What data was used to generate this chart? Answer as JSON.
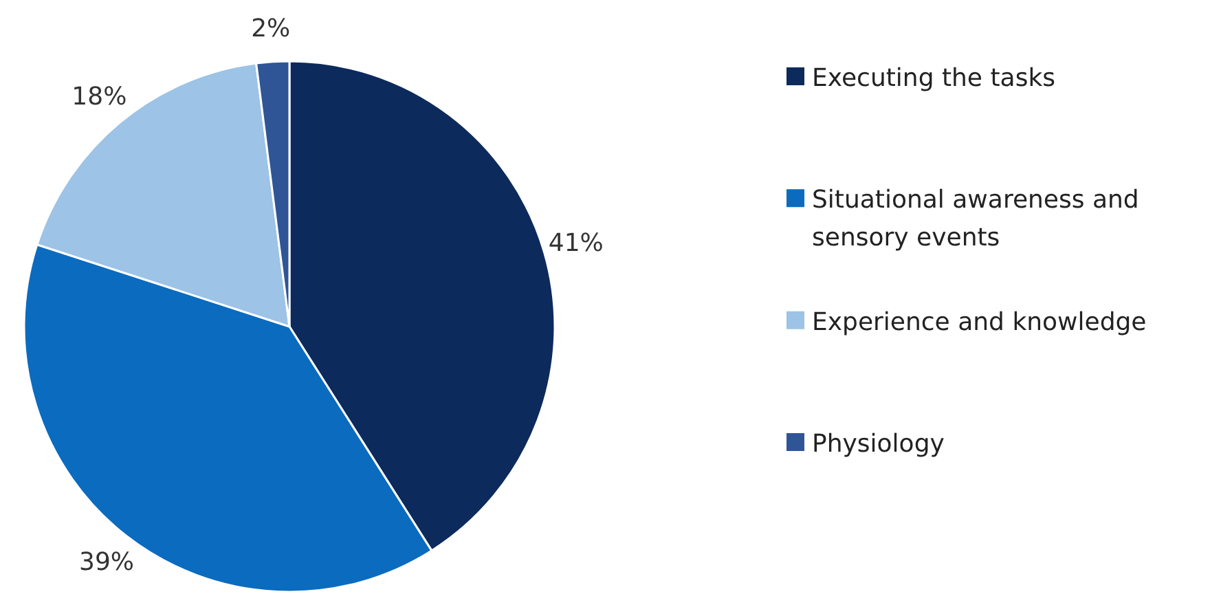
{
  "chart_data": {
    "type": "pie",
    "categories": [
      "Executing the tasks",
      "Situational awareness and sensory events",
      "Experience and knowledge",
      "Physiology"
    ],
    "values": [
      41,
      39,
      18,
      2
    ],
    "colors": [
      "#0d2a5c",
      "#0b6bbf",
      "#9dc3e6",
      "#2f5597"
    ],
    "value_labels": [
      "41%",
      "39%",
      "18%",
      "2%"
    ],
    "legend": "right"
  }
}
